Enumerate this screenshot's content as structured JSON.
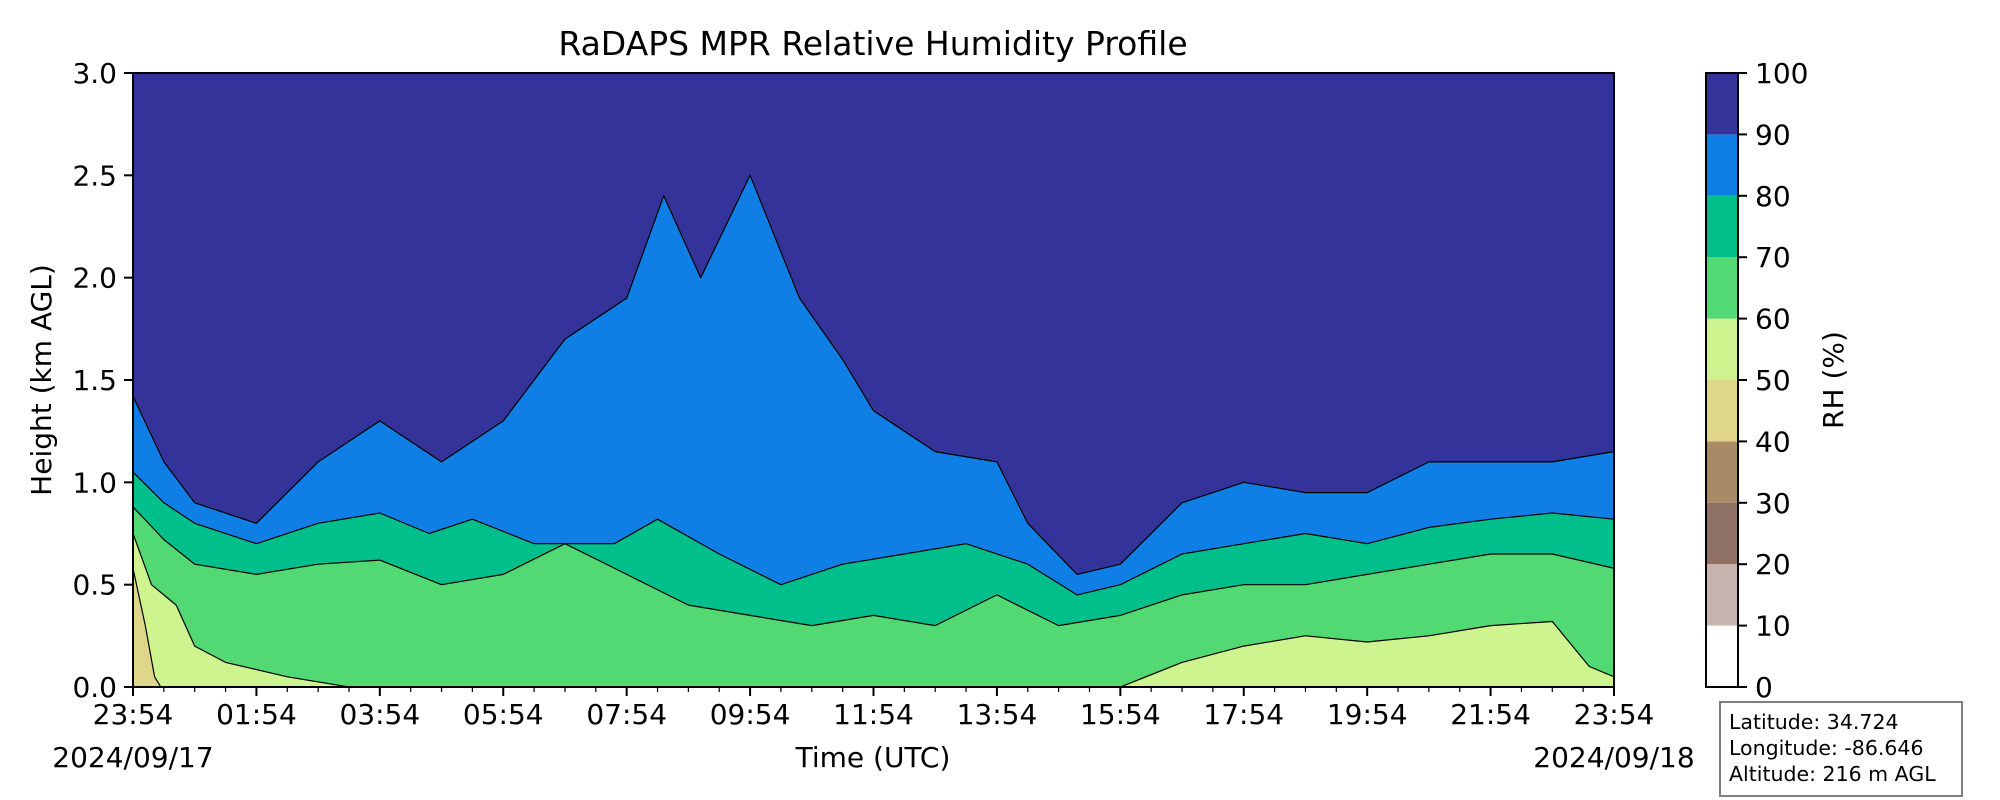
{
  "chart_data": {
    "type": "heatmap",
    "title": "RaDAPS MPR Relative Humidity Profile",
    "xlabel": "Time (UTC)",
    "ylabel": "Height (km AGL)",
    "x_ticks": [
      "23:54",
      "01:54",
      "03:54",
      "05:54",
      "07:54",
      "09:54",
      "11:54",
      "13:54",
      "15:54",
      "17:54",
      "19:54",
      "21:54",
      "23:54"
    ],
    "x_range_hours": [
      0,
      24
    ],
    "start_date": "2024/09/17",
    "end_date": "2024/09/18",
    "ylim": [
      0,
      3.0
    ],
    "y_ticks": [
      "0.0",
      "0.5",
      "1.0",
      "1.5",
      "2.0",
      "2.5",
      "3.0"
    ],
    "colorbar": {
      "label": "RH (%)",
      "levels": [
        0,
        10,
        20,
        30,
        40,
        50,
        60,
        70,
        80,
        90,
        100
      ],
      "tick_labels": [
        "0",
        "10",
        "20",
        "30",
        "40",
        "50",
        "60",
        "70",
        "80",
        "90",
        "100"
      ],
      "colors": [
        "#ffffff",
        "#c8b4ae",
        "#8e7064",
        "#a88b66",
        "#e0d68a",
        "#cdf48f",
        "#52d974",
        "#00bf8a",
        "#0f7fe5",
        "#343399"
      ]
    },
    "contour_boundaries_km": {
      "rh90": [
        [
          0.0,
          1.42
        ],
        [
          0.5,
          1.1
        ],
        [
          1.0,
          0.9
        ],
        [
          2.0,
          0.8
        ],
        [
          3.0,
          1.1
        ],
        [
          4.0,
          1.3
        ],
        [
          5.0,
          1.1
        ],
        [
          6.0,
          1.3
        ],
        [
          7.0,
          1.7
        ],
        [
          8.0,
          1.9
        ],
        [
          8.6,
          2.4
        ],
        [
          9.2,
          2.0
        ],
        [
          10.0,
          2.5
        ],
        [
          10.8,
          1.9
        ],
        [
          11.5,
          1.6
        ],
        [
          12.0,
          1.35
        ],
        [
          13.0,
          1.15
        ],
        [
          14.0,
          1.1
        ],
        [
          14.5,
          0.8
        ],
        [
          15.3,
          0.55
        ],
        [
          16.0,
          0.6
        ],
        [
          17.0,
          0.9
        ],
        [
          18.0,
          1.0
        ],
        [
          19.0,
          0.95
        ],
        [
          20.0,
          0.95
        ],
        [
          21.0,
          1.1
        ],
        [
          22.0,
          1.1
        ],
        [
          23.0,
          1.1
        ],
        [
          24.0,
          1.15
        ]
      ],
      "rh80": [
        [
          0.0,
          1.05
        ],
        [
          0.5,
          0.9
        ],
        [
          1.0,
          0.8
        ],
        [
          2.0,
          0.7
        ],
        [
          3.0,
          0.8
        ],
        [
          4.0,
          0.85
        ],
        [
          4.8,
          0.75
        ],
        [
          5.5,
          0.82
        ],
        [
          6.5,
          0.7
        ],
        [
          7.8,
          0.7
        ],
        [
          8.5,
          0.82
        ],
        [
          9.5,
          0.65
        ],
        [
          10.5,
          0.5
        ],
        [
          11.5,
          0.6
        ],
        [
          12.5,
          0.65
        ],
        [
          13.5,
          0.7
        ],
        [
          14.5,
          0.6
        ],
        [
          15.3,
          0.45
        ],
        [
          16.0,
          0.5
        ],
        [
          17.0,
          0.65
        ],
        [
          18.0,
          0.7
        ],
        [
          19.0,
          0.75
        ],
        [
          20.0,
          0.7
        ],
        [
          21.0,
          0.78
        ],
        [
          22.0,
          0.82
        ],
        [
          23.0,
          0.85
        ],
        [
          24.0,
          0.82
        ]
      ],
      "rh70": [
        [
          0.0,
          0.88
        ],
        [
          0.5,
          0.72
        ],
        [
          1.0,
          0.6
        ],
        [
          2.0,
          0.55
        ],
        [
          3.0,
          0.6
        ],
        [
          4.0,
          0.62
        ],
        [
          5.0,
          0.5
        ],
        [
          6.0,
          0.55
        ],
        [
          7.0,
          0.7
        ],
        [
          8.0,
          0.55
        ],
        [
          9.0,
          0.4
        ],
        [
          10.0,
          0.35
        ],
        [
          11.0,
          0.3
        ],
        [
          12.0,
          0.35
        ],
        [
          13.0,
          0.3
        ],
        [
          14.0,
          0.45
        ],
        [
          15.0,
          0.3
        ],
        [
          16.0,
          0.35
        ],
        [
          17.0,
          0.45
        ],
        [
          18.0,
          0.5
        ],
        [
          19.0,
          0.5
        ],
        [
          20.0,
          0.55
        ],
        [
          21.0,
          0.6
        ],
        [
          22.0,
          0.65
        ],
        [
          23.0,
          0.65
        ],
        [
          24.0,
          0.58
        ]
      ],
      "rh60": [
        [
          0.0,
          0.75
        ],
        [
          0.3,
          0.5
        ],
        [
          0.7,
          0.4
        ],
        [
          1.0,
          0.2
        ],
        [
          1.5,
          0.12
        ],
        [
          2.5,
          0.05
        ],
        [
          3.5,
          0.0
        ],
        [
          16.0,
          0.0
        ],
        [
          17.0,
          0.12
        ],
        [
          18.0,
          0.2
        ],
        [
          19.0,
          0.25
        ],
        [
          20.0,
          0.22
        ],
        [
          21.0,
          0.25
        ],
        [
          22.0,
          0.3
        ],
        [
          23.0,
          0.32
        ],
        [
          23.6,
          0.1
        ],
        [
          24.0,
          0.05
        ]
      ],
      "rh50": [
        [
          0.0,
          0.58
        ],
        [
          0.2,
          0.3
        ],
        [
          0.35,
          0.05
        ],
        [
          0.45,
          0.0
        ]
      ]
    }
  },
  "info": {
    "latitude": "Latitude: 34.724",
    "longitude": "Longitude: -86.646",
    "altitude": "Altitude: 216 m AGL"
  }
}
